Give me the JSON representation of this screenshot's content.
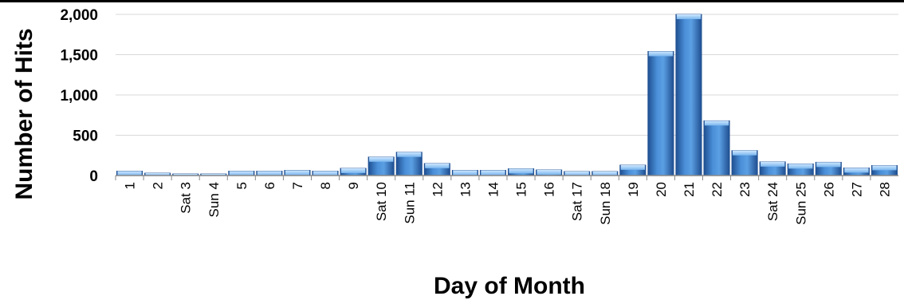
{
  "chart_data": {
    "type": "bar",
    "xlabel": "Day of Month",
    "ylabel": "Number of Hits",
    "ylim": [
      0,
      2000
    ],
    "yticks": [
      0,
      500,
      1000,
      1500,
      2000
    ],
    "ytick_labels": [
      "0",
      "500",
      "1,000",
      "1,500",
      "2,000"
    ],
    "grid": true,
    "legend": "none",
    "colors": {
      "bar": "#3d7fce",
      "bar_dark": "#1f4f91",
      "bar_light": "#8ec3f3",
      "grid": "#d9d9d9",
      "axis": "#888888"
    },
    "categories": [
      "1",
      "2",
      "Sat 3",
      "Sun 4",
      "5",
      "6",
      "7",
      "8",
      "9",
      "Sat 10",
      "Sun 11",
      "12",
      "13",
      "14",
      "15",
      "16",
      "Sat 17",
      "Sun 18",
      "19",
      "20",
      "21",
      "22",
      "23",
      "Sat 24",
      "Sun 25",
      "26",
      "27",
      "28"
    ],
    "values": [
      55,
      30,
      15,
      12,
      55,
      55,
      65,
      55,
      90,
      230,
      290,
      150,
      65,
      65,
      85,
      70,
      50,
      50,
      130,
      1540,
      2000,
      680,
      310,
      170,
      145,
      165,
      95,
      125
    ]
  }
}
